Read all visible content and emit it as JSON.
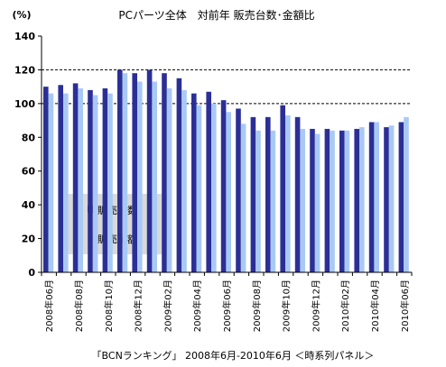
{
  "chart_data": {
    "type": "bar",
    "title": "PCパーツ全体　対前年 販売台数･金額比",
    "ylabel": "(%)",
    "ylim": [
      0,
      140
    ],
    "yticks": [
      0,
      20,
      40,
      60,
      80,
      100,
      120,
      140
    ],
    "grid": "dashed at 100 and 120",
    "legend_position": "lower-left inside plot",
    "categories": [
      "2008年06月",
      "2008年07月",
      "2008年08月",
      "2008年09月",
      "2008年10月",
      "2008年11月",
      "2008年12月",
      "2009年01月",
      "2009年02月",
      "2009年03月",
      "2009年04月",
      "2009年05月",
      "2009年06月",
      "2009年07月",
      "2009年08月",
      "2009年09月",
      "2009年10月",
      "2009年11月",
      "2009年12月",
      "2010年01月",
      "2010年02月",
      "2010年03月",
      "2010年04月",
      "2010年05月",
      "2010年06月"
    ],
    "tick_labels": [
      "2008年06月",
      "",
      "2008年08月",
      "",
      "2008年10月",
      "",
      "2008年12月",
      "",
      "2009年02月",
      "",
      "2009年04月",
      "",
      "2009年06月",
      "",
      "2009年08月",
      "",
      "2009年10月",
      "",
      "2009年12月",
      "",
      "2010年02月",
      "",
      "2010年04月",
      "",
      "2010年06月"
    ],
    "series": [
      {
        "name": "販売台数",
        "color": "#2b2f95",
        "values": [
          110,
          111,
          112,
          108,
          109,
          120,
          118,
          120,
          118,
          115,
          106,
          107,
          102,
          97,
          92,
          92,
          99,
          92,
          85,
          85,
          84,
          85,
          89,
          86,
          89
        ]
      },
      {
        "name": "販売金額",
        "color": "#a9c9f5",
        "values": [
          106,
          106,
          109,
          105,
          106,
          118,
          113,
          113,
          109,
          108,
          99,
          100,
          95,
          88,
          84,
          84,
          93,
          85,
          82,
          84,
          84,
          86,
          89,
          87,
          92
        ]
      }
    ],
    "footer": "「BCNランキング」 2008年6月-2010年6月 ＜時系列パネル＞"
  }
}
